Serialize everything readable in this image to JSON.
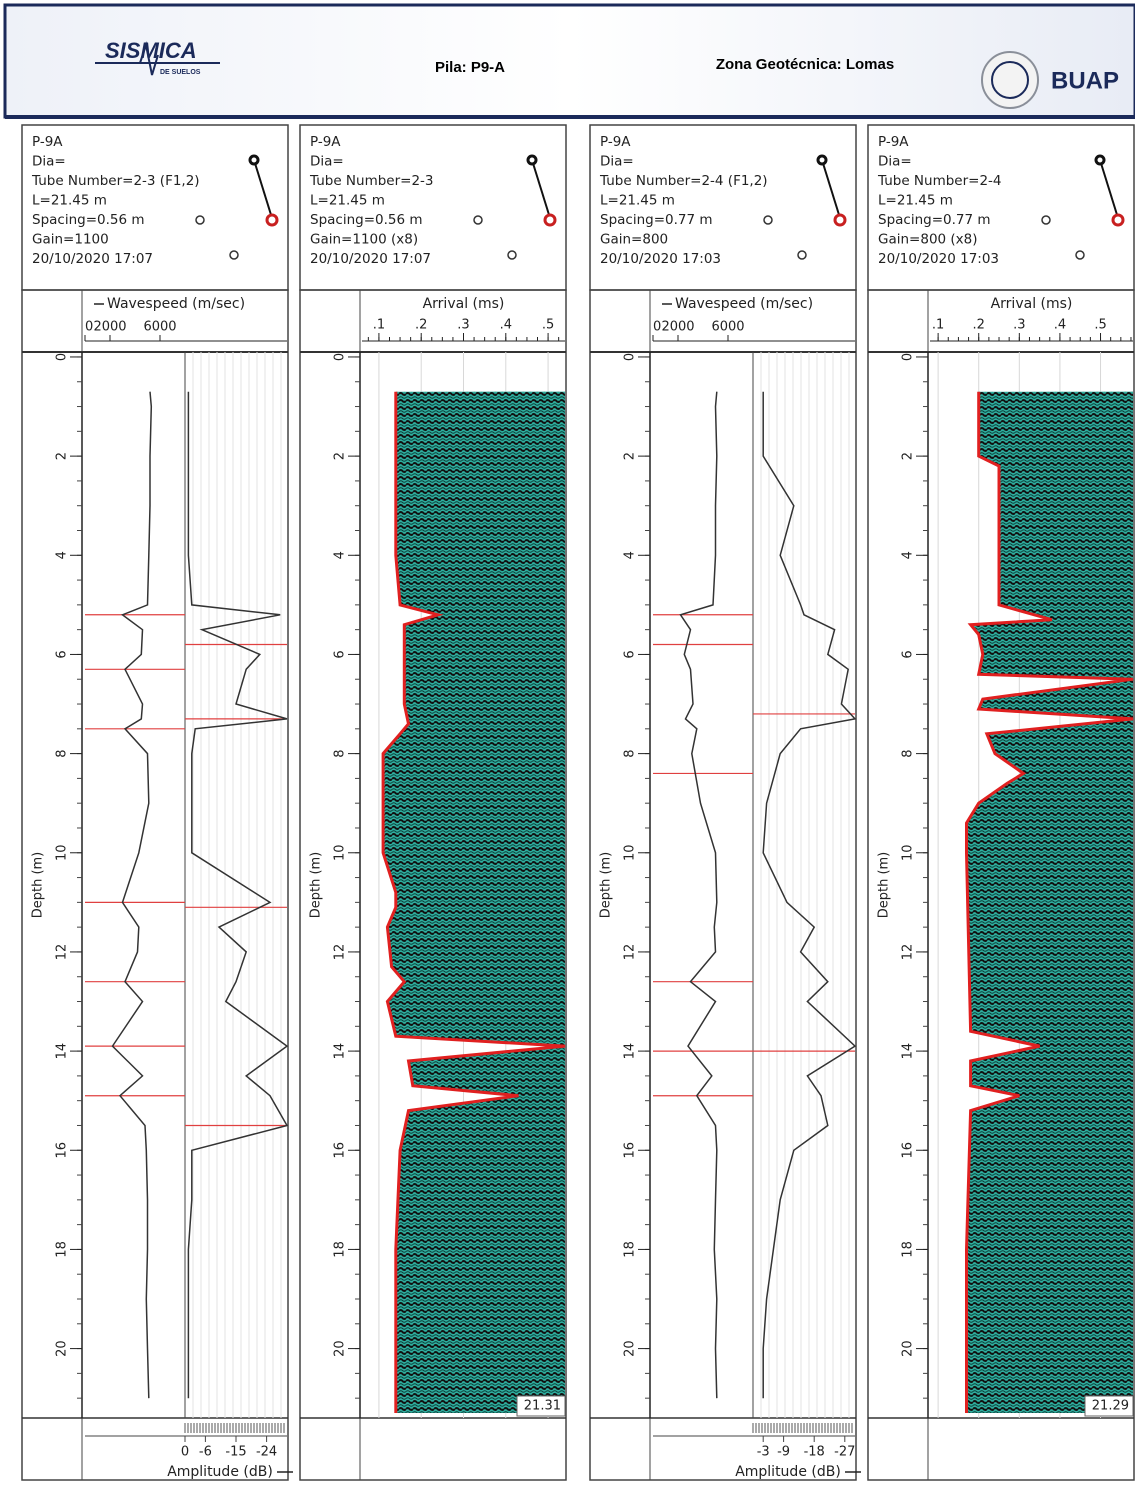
{
  "header": {
    "logo_text": "SISMICA",
    "logo_subtext": "DE SUELOS",
    "pile": "Pila: P9-A",
    "zone": "Zona Geotécnica: Lomas",
    "institution": "BUAP"
  },
  "chart_data": [
    {
      "type": "wavespeed",
      "info": [
        "P-9A",
        "Dia=",
        "Tube Number=2-3 (F1,2)",
        "L=21.45 m",
        "Spacing=0.56 m",
        "Gain=1100",
        "20/10/2020 17:07"
      ],
      "ylabel": "Depth (m)",
      "ylim": [
        -0.1,
        21.4
      ],
      "yticks": [
        0,
        2,
        4,
        6,
        8,
        10,
        12,
        14,
        16,
        18,
        20
      ],
      "xlim": [
        0,
        8000
      ],
      "xticks": [
        0,
        2000,
        6000
      ],
      "x2label": "Amplitude (dB)",
      "x2lim": [
        0,
        -30
      ],
      "x2ticks": [
        0,
        -6,
        -15,
        -24
      ],
      "depths": [
        0.7,
        1,
        2,
        3,
        4,
        5,
        5.2,
        5.5,
        6,
        6.3,
        7,
        7.3,
        7.5,
        8,
        9,
        10,
        11,
        11.5,
        12,
        12.6,
        13,
        13.9,
        14.5,
        14.9,
        15.5,
        16,
        17,
        18,
        19,
        20,
        21
      ],
      "series": [
        {
          "name": "Wavespeed (m/sec)",
          "color": "#333333",
          "values": [
            5200,
            5300,
            5200,
            5200,
            5100,
            5000,
            3000,
            4600,
            4500,
            3200,
            4600,
            4500,
            3200,
            5000,
            5100,
            4300,
            3000,
            4300,
            4200,
            3200,
            4600,
            2200,
            4600,
            2800,
            4800,
            4900,
            5000,
            5000,
            4900,
            5000,
            5100
          ],
          "flag_depths": [
            5.2,
            6.3,
            7.5,
            11.0,
            12.6,
            13.9,
            14.9
          ]
        },
        {
          "name": "Amplitude (dB)",
          "axis": "x2",
          "color": "#333333",
          "values": [
            -1,
            -1,
            -1,
            -1,
            -1,
            -2,
            -28,
            -5,
            -22,
            -18,
            -15,
            -30,
            -3,
            -2,
            -2,
            -2,
            -25,
            -10,
            -18,
            -15,
            -12,
            -30,
            -18,
            -25,
            -30,
            -2,
            -2,
            -1,
            -1,
            -1,
            -1
          ],
          "flag_depths": [
            5.8,
            7.3,
            11.1,
            15.5
          ]
        }
      ]
    },
    {
      "type": "arrival",
      "info": [
        "P-9A",
        "Dia=",
        "Tube Number=2-3",
        "L=21.45 m",
        "Spacing=0.56 m",
        "Gain=1100 (x8)",
        "20/10/2020 17:07"
      ],
      "ylabel": "Depth (m)",
      "ylim": [
        -0.1,
        21.4
      ],
      "yticks": [
        0,
        2,
        4,
        6,
        8,
        10,
        12,
        14,
        16,
        18,
        20
      ],
      "xlabel": "Arrival (ms)",
      "xlim": [
        0.06,
        0.54
      ],
      "xticks": [
        {
          "value": 0.1,
          "label": ".1"
        },
        {
          "value": 0.2,
          "label": ".2"
        },
        {
          "value": 0.3,
          "label": ".3"
        },
        {
          "value": 0.4,
          "label": ".4"
        },
        {
          "value": 0.5,
          "label": ".5"
        }
      ],
      "bottom_label": "21.31",
      "depths": [
        0.7,
        2,
        4,
        5,
        5.2,
        5.4,
        6,
        7,
        7.4,
        7.6,
        8,
        10,
        10.8,
        11.1,
        11.5,
        12.3,
        12.6,
        13,
        13.7,
        13.9,
        14.2,
        14.7,
        14.9,
        15.2,
        15.6,
        16,
        18,
        21.3
      ],
      "series": [
        {
          "name": "First arrival",
          "color": "#e02020",
          "values": [
            0.14,
            0.14,
            0.14,
            0.15,
            0.24,
            0.16,
            0.16,
            0.16,
            0.17,
            0.15,
            0.11,
            0.11,
            0.14,
            0.14,
            0.12,
            0.13,
            0.16,
            0.12,
            0.14,
            0.54,
            0.17,
            0.18,
            0.43,
            0.17,
            0.16,
            0.15,
            0.14,
            0.14
          ]
        }
      ]
    },
    {
      "type": "wavespeed",
      "info": [
        "P-9A",
        "Dia=",
        "Tube Number=2-4 (F1,2)",
        "L=21.45 m",
        "Spacing=0.77 m",
        "Gain=800",
        "20/10/2020 17:03"
      ],
      "ylabel": "Depth (m)",
      "ylim": [
        -0.1,
        21.4
      ],
      "yticks": [
        0,
        2,
        4,
        6,
        8,
        10,
        12,
        14,
        16,
        18,
        20
      ],
      "xlim": [
        0,
        8000
      ],
      "xticks": [
        0,
        2000,
        6000
      ],
      "x2label": "Amplitude (dB)",
      "x2lim": [
        0,
        -30
      ],
      "x2ticks": [
        -3,
        -9,
        -18,
        -27
      ],
      "depths": [
        0.7,
        1,
        2,
        3,
        4,
        5,
        5.2,
        5.5,
        6,
        6.3,
        7,
        7.3,
        7.5,
        8,
        9,
        10,
        11,
        11.5,
        12,
        12.6,
        13,
        13.9,
        14.5,
        14.9,
        15.5,
        16,
        17,
        18,
        19,
        20,
        21
      ],
      "series": [
        {
          "name": "Wavespeed (m/sec)",
          "color": "#333333",
          "values": [
            5100,
            5000,
            5100,
            5000,
            5000,
            4800,
            2200,
            3000,
            2500,
            3000,
            3200,
            2600,
            3500,
            3100,
            3800,
            5000,
            5100,
            4900,
            5000,
            3000,
            5000,
            2800,
            4700,
            3500,
            5000,
            5100,
            5000,
            4900,
            5100,
            5000,
            5100
          ],
          "flag_depths": [
            5.2,
            5.8,
            8.4,
            12.6,
            14.0,
            14.9
          ]
        },
        {
          "name": "Amplitude (dB)",
          "axis": "x2",
          "color": "#333333",
          "values": [
            -3,
            -3,
            -3,
            -12,
            -8,
            -14,
            -15,
            -24,
            -22,
            -28,
            -26,
            -30,
            -14,
            -8,
            -4,
            -3,
            -10,
            -18,
            -14,
            -22,
            -16,
            -30,
            -16,
            -20,
            -22,
            -12,
            -8,
            -6,
            -4,
            -3,
            -3
          ],
          "flag_depths": [
            7.2,
            14.0
          ]
        }
      ]
    },
    {
      "type": "arrival",
      "info": [
        "P-9A",
        "Dia=",
        "Tube Number=2-4",
        "L=21.45 m",
        "Spacing=0.77 m",
        "Gain=800 (x8)",
        "20/10/2020 17:03"
      ],
      "ylabel": "Depth (m)",
      "ylim": [
        -0.1,
        21.4
      ],
      "yticks": [
        0,
        2,
        4,
        6,
        8,
        10,
        12,
        14,
        16,
        18,
        20
      ],
      "xlabel": "Arrival (ms)",
      "xlim": [
        0.08,
        0.58
      ],
      "xticks": [
        {
          "value": 0.1,
          "label": ".1"
        },
        {
          "value": 0.2,
          "label": ".2"
        },
        {
          "value": 0.3,
          "label": ".3"
        },
        {
          "value": 0.4,
          "label": ".4"
        },
        {
          "value": 0.5,
          "label": ".5"
        }
      ],
      "bottom_label": "21.29",
      "depths": [
        0.7,
        2,
        2.2,
        5,
        5.3,
        5.4,
        5.6,
        6,
        6.4,
        6.5,
        6.9,
        7.1,
        7.3,
        7.6,
        8,
        8.4,
        8.6,
        9,
        9.4,
        10,
        13.6,
        13.9,
        14.2,
        14.7,
        14.9,
        15.2,
        18,
        21.3
      ],
      "series": [
        {
          "name": "First arrival",
          "color": "#e02020",
          "values": [
            0.2,
            0.2,
            0.25,
            0.25,
            0.38,
            0.18,
            0.2,
            0.21,
            0.2,
            0.58,
            0.21,
            0.2,
            0.58,
            0.22,
            0.24,
            0.31,
            0.27,
            0.2,
            0.17,
            0.17,
            0.18,
            0.35,
            0.18,
            0.18,
            0.3,
            0.18,
            0.17,
            0.17
          ]
        }
      ]
    }
  ]
}
